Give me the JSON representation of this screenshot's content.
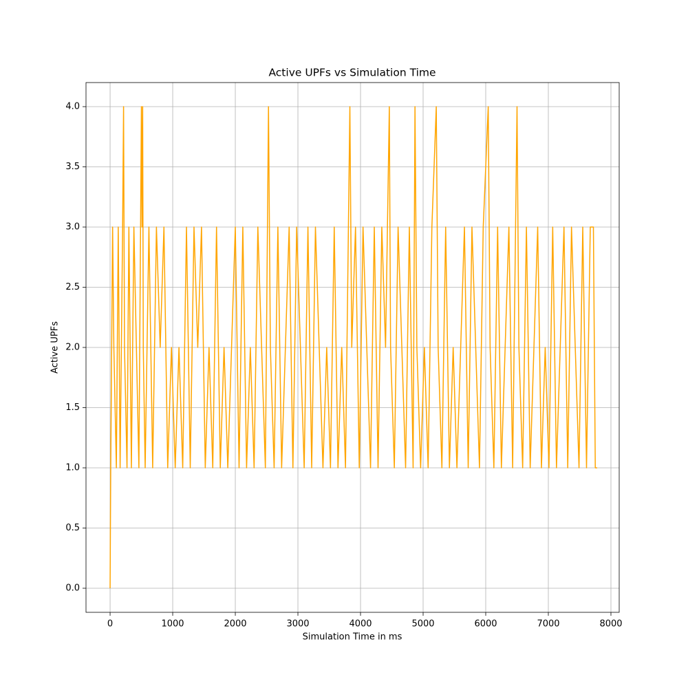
{
  "chart_data": {
    "type": "line",
    "title": "Active UPFs vs Simulation Time",
    "x_label": "Simulation Time in ms",
    "y_label": "Active UPFs",
    "color": "#ffa500",
    "grid": true,
    "x": [
      0,
      10,
      40,
      60,
      100,
      130,
      160,
      200,
      215,
      230,
      270,
      300,
      340,
      380,
      420,
      460,
      500,
      510,
      520,
      530,
      560,
      620,
      680,
      740,
      800,
      860,
      920,
      980,
      1040,
      1100,
      1160,
      1220,
      1280,
      1340,
      1400,
      1460,
      1520,
      1580,
      1640,
      1700,
      1760,
      1820,
      1880,
      1940,
      2000,
      2060,
      2120,
      2180,
      2240,
      2300,
      2360,
      2420,
      2480,
      2530,
      2560,
      2620,
      2680,
      2740,
      2800,
      2860,
      2920,
      2980,
      3040,
      3100,
      3160,
      3220,
      3280,
      3340,
      3400,
      3460,
      3520,
      3580,
      3640,
      3700,
      3760,
      3830,
      3860,
      3920,
      3980,
      4040,
      4100,
      4160,
      4220,
      4280,
      4340,
      4400,
      4460,
      4480,
      4540,
      4600,
      4660,
      4720,
      4780,
      4840,
      4870,
      4900,
      4960,
      5020,
      5080,
      5140,
      5210,
      5240,
      5300,
      5360,
      5420,
      5480,
      5540,
      5600,
      5660,
      5720,
      5780,
      5840,
      5900,
      5960,
      6040,
      6070,
      6130,
      6190,
      6250,
      6310,
      6370,
      6430,
      6500,
      6530,
      6590,
      6650,
      6710,
      6770,
      6830,
      6890,
      6950,
      7010,
      7070,
      7130,
      7190,
      7250,
      7310,
      7370,
      7430,
      7490,
      7550,
      7610,
      7670,
      7720,
      7750,
      7780
    ],
    "values": [
      0,
      1,
      3,
      2,
      1,
      3,
      1,
      3,
      4,
      2,
      1,
      3,
      1,
      3,
      2,
      1,
      4,
      3,
      4,
      2,
      1,
      3,
      1,
      3,
      2,
      3,
      1,
      2,
      1,
      2,
      1,
      3,
      1,
      3,
      2,
      3,
      1,
      2,
      1,
      3,
      1,
      2,
      1,
      2,
      3,
      1,
      3,
      1,
      2,
      1,
      3,
      2,
      1,
      4,
      2,
      1,
      3,
      1,
      2,
      3,
      1,
      3,
      2,
      1,
      3,
      1,
      3,
      2,
      1,
      2,
      1,
      3,
      1,
      2,
      1,
      4,
      2,
      3,
      1,
      3,
      2,
      1,
      3,
      1,
      3,
      2,
      4,
      2,
      1,
      3,
      2,
      1,
      3,
      1,
      4,
      2,
      1,
      2,
      1,
      3,
      4,
      2,
      1,
      3,
      1,
      2,
      1,
      2,
      3,
      1,
      3,
      2,
      1,
      3,
      4,
      2,
      1,
      3,
      1,
      2,
      3,
      1,
      4,
      2,
      1,
      3,
      1,
      2,
      3,
      1,
      2,
      1,
      3,
      1,
      2,
      3,
      1,
      3,
      2,
      1,
      3,
      1,
      3,
      3,
      1,
      1
    ],
    "xlim": [
      -385,
      8132
    ],
    "xticks": [
      0,
      1000,
      2000,
      3000,
      4000,
      5000,
      6000,
      7000,
      8000
    ],
    "ylim": [
      -0.2,
      4.2
    ],
    "yticks": [
      {
        "value": 0,
        "label": "0.0"
      },
      {
        "value": 0.5,
        "label": "0.5"
      },
      {
        "value": 1,
        "label": "1.0"
      },
      {
        "value": 1.5,
        "label": "1.5"
      },
      {
        "value": 2,
        "label": "2.0"
      },
      {
        "value": 2.5,
        "label": "2.5"
      },
      {
        "value": 3,
        "label": "3.0"
      },
      {
        "value": 3.5,
        "label": "3.5"
      },
      {
        "value": 4,
        "label": "4.0"
      }
    ]
  }
}
